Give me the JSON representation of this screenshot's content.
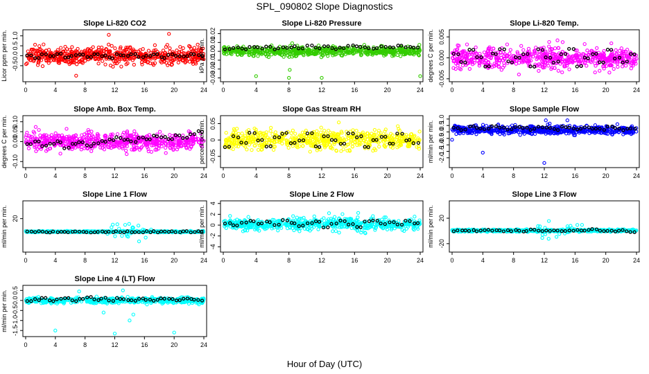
{
  "figure": {
    "title": "SPL_090802  Slope Diagnostics",
    "xlabel": "Hour of Day (UTC)"
  },
  "chart_data": [
    {
      "type": "scatter",
      "title": "Slope Li-820 CO2",
      "ylabel": "Licor ppm per min.",
      "color": "#ff0000",
      "xlim": [
        0,
        24
      ],
      "xticks": [
        "0",
        "4",
        "8",
        "12",
        "16",
        "20",
        "24"
      ],
      "ylim": [
        -1.2,
        1.2
      ],
      "yticks": [
        {
          "v": -0.5,
          "label": "-0.5"
        },
        {
          "v": 0.0,
          "label": "0.0"
        },
        {
          "v": 0.5,
          "label": "0.5"
        },
        {
          "v": 1.0,
          "label": "1.0"
        }
      ],
      "series": [
        {
          "name": "individual",
          "n": 620,
          "center": 0.0,
          "spread": 0.38,
          "outliers": [
            [
              11.2,
              1.05
            ],
            [
              19.3,
              1.1
            ],
            [
              6.8,
              -1.0
            ]
          ]
        },
        {
          "name": "hourly",
          "color": "#000000",
          "values": [
            0.0,
            -0.1,
            0.05,
            -0.05,
            0.1,
            -0.1,
            0.0,
            0.05,
            -0.05,
            0.1,
            0.0,
            -0.1,
            0.05,
            0.0,
            0.1,
            -0.05,
            0.0,
            0.1,
            -0.1,
            0.05,
            0.0,
            -0.05,
            0.1,
            0.0
          ]
        }
      ]
    },
    {
      "type": "scatter",
      "title": "Slope Li-820 Pressure",
      "ylabel": "kPa per min.",
      "color": "#33cc00",
      "xlim": [
        0,
        24
      ],
      "xticks": [
        "0",
        "4",
        "8",
        "12",
        "16",
        "20",
        "24"
      ],
      "ylim": [
        -0.032,
        0.022
      ],
      "yticks": [
        {
          "v": -0.03,
          "label": "-0.03"
        },
        {
          "v": -0.02,
          "label": "-0.02"
        },
        {
          "v": -0.01,
          "label": "-0.01"
        },
        {
          "v": 0.0,
          "label": "0.00"
        },
        {
          "v": 0.01,
          "label": "0.01"
        },
        {
          "v": 0.02,
          "label": "0.02"
        }
      ],
      "series": [
        {
          "name": "individual",
          "n": 620,
          "center": 0.0,
          "spread": 0.0045,
          "outliers": [
            [
              4.0,
              -0.028
            ],
            [
              8.0,
              -0.03
            ],
            [
              8.1,
              -0.021
            ],
            [
              12.0,
              -0.03
            ],
            [
              24.0,
              -0.028
            ]
          ]
        },
        {
          "name": "hourly",
          "color": "#000000",
          "values": [
            0.002,
            0.004,
            0.003,
            0.005,
            0.004,
            0.006,
            0.003,
            0.004,
            0.005,
            0.003,
            0.006,
            0.004,
            0.005,
            0.003,
            0.004,
            0.006,
            0.005,
            0.004,
            0.003,
            0.005,
            0.004,
            0.006,
            0.005,
            0.004
          ]
        }
      ]
    },
    {
      "type": "scatter",
      "title": "Slope Li-820 Temp.",
      "ylabel": "degrees C per min.",
      "color": "#ff00ff",
      "xlim": [
        0,
        24
      ],
      "xticks": [
        "0",
        "4",
        "8",
        "12",
        "16",
        "20",
        "24"
      ],
      "ylim": [
        -0.0052,
        0.0062
      ],
      "yticks": [
        {
          "v": -0.005,
          "label": "-0.005"
        },
        {
          "v": 0.0,
          "label": "0.000"
        },
        {
          "v": 0.005,
          "label": "0.005"
        }
      ],
      "series": [
        {
          "name": "individual",
          "n": 620,
          "center": 0.0,
          "spread": 0.0022,
          "outliers": []
        },
        {
          "name": "hourly",
          "color": "#000000",
          "values": [
            0.001,
            -0.001,
            0.002,
            0.0,
            -0.002,
            0.001,
            0.002,
            -0.001,
            0.0,
            0.001,
            -0.002,
            0.002,
            0.0,
            -0.001,
            0.001,
            0.002,
            -0.002,
            0.0,
            0.001,
            -0.001,
            0.002,
            0.0,
            -0.001,
            0.001
          ]
        }
      ]
    },
    {
      "type": "scatter",
      "title": "Slope Amb. Box Temp.",
      "ylabel": "degrees C per min.",
      "color": "#ff00ff",
      "xlim": [
        0,
        24
      ],
      "xticks": [
        "0",
        "4",
        "8",
        "12",
        "16",
        "20",
        "24"
      ],
      "ylim": [
        -0.12,
        0.12
      ],
      "yticks": [
        {
          "v": -0.1,
          "label": "-0.10"
        },
        {
          "v": 0.0,
          "label": "0.00"
        },
        {
          "v": 0.05,
          "label": "0.05"
        },
        {
          "v": 0.1,
          "label": "0.10"
        }
      ],
      "series": [
        {
          "name": "individual",
          "n": 620,
          "center": 0.0,
          "spread": 0.04,
          "outliers": []
        },
        {
          "name": "hourly",
          "color": "#000000",
          "values": [
            -0.01,
            0.0,
            -0.02,
            -0.01,
            0.0,
            -0.03,
            -0.01,
            0.0,
            -0.02,
            -0.01,
            0.0,
            0.01,
            0.02,
            0.01,
            0.0,
            0.02,
            0.01,
            0.03,
            0.02,
            0.01,
            0.03,
            0.02,
            0.04,
            0.05
          ]
        }
      ]
    },
    {
      "type": "scatter",
      "title": "Slope Gas Stream RH",
      "ylabel": "percent per min.",
      "color": "#ffff00",
      "xlim": [
        0,
        24
      ],
      "xticks": [
        "0",
        "4",
        "8",
        "12",
        "16",
        "20",
        "24"
      ],
      "ylim": [
        -0.078,
        0.068
      ],
      "yticks": [
        {
          "v": -0.05,
          "label": "-0.05"
        },
        {
          "v": 0.0,
          "label": "0"
        },
        {
          "v": 0.05,
          "label": "0.05"
        }
      ],
      "series": [
        {
          "name": "individual",
          "n": 620,
          "center": 0.0,
          "spread": 0.025,
          "outliers": []
        },
        {
          "name": "hourly",
          "color": "#000000",
          "values": [
            -0.02,
            0.01,
            -0.01,
            0.02,
            0.0,
            -0.02,
            0.01,
            0.02,
            -0.01,
            0.0,
            0.02,
            -0.02,
            0.01,
            0.0,
            -0.01,
            0.02,
            0.01,
            -0.02,
            0.0,
            0.01,
            -0.01,
            0.02,
            0.0,
            -0.01
          ]
        }
      ]
    },
    {
      "type": "scatter",
      "title": "Slope Sample Flow",
      "ylabel": "ml/min per min.",
      "color": "#0000ff",
      "xlim": [
        0,
        24
      ],
      "xticks": [
        "0",
        "4",
        "8",
        "12",
        "16",
        "20",
        "24"
      ],
      "ylim": [
        -2.6,
        1.1
      ],
      "yticks": [
        {
          "v": -2.0,
          "label": "-2.0"
        },
        {
          "v": -1.5,
          "label": "-1.5"
        },
        {
          "v": -1.0,
          "label": "-1.0"
        },
        {
          "v": -0.5,
          "label": "-0.5"
        },
        {
          "v": 0.0,
          "label": "0.0"
        },
        {
          "v": 0.5,
          "label": "0.5"
        },
        {
          "v": 1.0,
          "label": "1.0"
        }
      ],
      "series": [
        {
          "name": "individual",
          "n": 620,
          "center": 0.15,
          "spread": 0.28,
          "outliers": [
            [
              0.0,
              -0.6
            ],
            [
              4.0,
              -1.6
            ],
            [
              12.0,
              -2.4
            ],
            [
              12.2,
              0.9
            ],
            [
              15.0,
              0.9
            ]
          ]
        },
        {
          "name": "hourly",
          "color": "#000000",
          "values": [
            0.3,
            0.2,
            0.4,
            0.3,
            0.2,
            0.4,
            0.3,
            0.2,
            0.4,
            0.3,
            0.2,
            0.4,
            0.3,
            0.2,
            0.4,
            0.3,
            0.2,
            0.4,
            0.3,
            0.2,
            0.4,
            0.3,
            0.2,
            0.3
          ]
        }
      ]
    },
    {
      "type": "scatter",
      "title": "Slope Line 1 Flow",
      "ylabel": "ml/min per min.",
      "color": "#00ffff",
      "xlim": [
        0,
        24
      ],
      "xticks": [
        "0",
        "4",
        "8",
        "12",
        "16",
        "20",
        "24"
      ],
      "ylim": [
        -28,
        44
      ],
      "yticks": [
        {
          "v": 20,
          "label": "20"
        }
      ],
      "series": [
        {
          "name": "individual",
          "n": 620,
          "center": 0.0,
          "spread": 0.9,
          "burst": {
            "x0": 11,
            "x1": 17,
            "spread": 14
          }
        },
        {
          "name": "hourly",
          "color": "#000000",
          "values": [
            0,
            0,
            0,
            0,
            0,
            0,
            0,
            0,
            0,
            0,
            0,
            0,
            0,
            0,
            0,
            0,
            0,
            0,
            0,
            0,
            0,
            0,
            0,
            0
          ]
        }
      ]
    },
    {
      "type": "scatter",
      "title": "Slope Line 2 Flow",
      "ylabel": "ml/min per min.",
      "color": "#00ffff",
      "xlim": [
        0,
        24
      ],
      "xticks": [
        "0",
        "4",
        "8",
        "12",
        "16",
        "20",
        "24"
      ],
      "ylim": [
        -4.6,
        4.1
      ],
      "yticks": [
        {
          "v": -4,
          "label": "-4"
        },
        {
          "v": -2,
          "label": "-2"
        },
        {
          "v": 0,
          "label": "0"
        },
        {
          "v": 2,
          "label": "2"
        },
        {
          "v": 4,
          "label": "4"
        }
      ],
      "series": [
        {
          "name": "individual",
          "n": 620,
          "center": 0.2,
          "spread": 0.9,
          "burst": {
            "x0": 10,
            "x1": 20,
            "spread": 1.8
          }
        },
        {
          "name": "hourly",
          "color": "#000000",
          "values": [
            0.3,
            0.0,
            0.5,
            0.8,
            0.2,
            0.6,
            0.1,
            0.9,
            0.3,
            -0.2,
            0.4,
            0.7,
            -0.5,
            0.3,
            0.8,
            0.1,
            -0.3,
            0.6,
            0.9,
            0.2,
            0.5,
            0.0,
            0.7,
            0.3
          ]
        }
      ]
    },
    {
      "type": "scatter",
      "title": "Slope Line 3 Flow",
      "ylabel": "ml/min per min.",
      "color": "#00ffff",
      "xlim": [
        0,
        24
      ],
      "xticks": [
        "0",
        "4",
        "8",
        "12",
        "16",
        "20",
        "24"
      ],
      "ylim": [
        -30,
        44
      ],
      "yticks": [
        {
          "v": -20,
          "label": "-20"
        },
        {
          "v": 20,
          "label": "20"
        }
      ],
      "series": [
        {
          "name": "individual",
          "n": 620,
          "center": 0.5,
          "spread": 1.6,
          "burst": {
            "x0": 11,
            "x1": 17,
            "spread": 14
          }
        },
        {
          "name": "hourly",
          "color": "#000000",
          "values": [
            0,
            0.5,
            1,
            0.5,
            2,
            1,
            0,
            0.5,
            1,
            0,
            1.5,
            0.5,
            0,
            1,
            0.5,
            0,
            1,
            0.5,
            2,
            0.5,
            1,
            0,
            0.5,
            -1
          ]
        }
      ]
    },
    {
      "type": "scatter",
      "title": "Slope Line 4 (LT) Flow",
      "ylabel": "ml/min per min.",
      "color": "#00ffff",
      "xlim": [
        0,
        24
      ],
      "xticks": [
        "0",
        "4",
        "8",
        "12",
        "16",
        "20",
        "24"
      ],
      "ylim": [
        -1.7,
        0.65
      ],
      "yticks": [
        {
          "v": -1.5,
          "label": "-1.5"
        },
        {
          "v": -1.0,
          "label": "-1.0"
        },
        {
          "v": -0.5,
          "label": "-0.5"
        },
        {
          "v": 0.0,
          "label": "0.0"
        },
        {
          "v": 0.5,
          "label": "0.5"
        }
      ],
      "series": [
        {
          "name": "individual",
          "n": 620,
          "center": 0.0,
          "spread": 0.12,
          "outliers": [
            [
              4.0,
              -1.5
            ],
            [
              12.0,
              -1.65
            ],
            [
              14.0,
              -1.0
            ],
            [
              20.0,
              -1.6
            ],
            [
              10.5,
              -0.6
            ],
            [
              14.5,
              -0.7
            ],
            [
              7.2,
              0.45
            ],
            [
              13.1,
              0.5
            ]
          ]
        },
        {
          "name": "hourly",
          "color": "#000000",
          "values": [
            0.0,
            0.05,
            0.1,
            0.0,
            0.05,
            0.1,
            0.0,
            0.05,
            0.15,
            0.05,
            0.1,
            0.0,
            0.1,
            0.05,
            0.0,
            0.1,
            0.05,
            0.0,
            0.1,
            0.05,
            0.0,
            0.1,
            0.05,
            0.0
          ]
        }
      ]
    }
  ]
}
